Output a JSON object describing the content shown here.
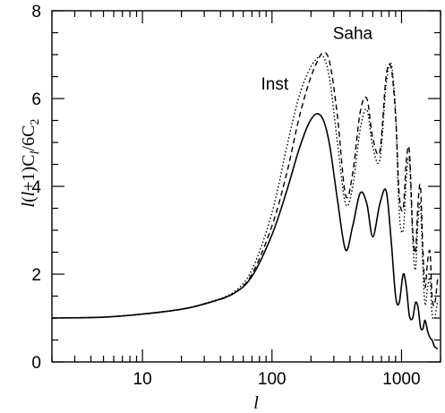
{
  "chart_data": {
    "type": "line",
    "title": "",
    "xlabel": "l",
    "ylabel": "l(l+1)C_l/6C_2",
    "ylabel_parts": {
      "a": "l",
      "b": "(",
      "c": "l",
      "d": "+1)C",
      "e": "l",
      "f": "/6C",
      "g": "2"
    },
    "x_scale": "log",
    "xlim": [
      2,
      2000
    ],
    "ylim": [
      0,
      8
    ],
    "grid": false,
    "x_ticks": [
      10,
      100,
      1000
    ],
    "x_tick_labels": [
      "10",
      "100",
      "1000"
    ],
    "y_ticks": [
      0,
      2,
      4,
      6,
      8
    ],
    "y_tick_labels": [
      "0",
      "2",
      "4",
      "6",
      "8"
    ],
    "annotations": [
      {
        "text": "Saha",
        "x": 420,
        "y": 7.5
      },
      {
        "text": "Inst",
        "x": 105,
        "y": 6.35
      }
    ],
    "series": [
      {
        "style": "solid",
        "x": [
          2,
          5,
          10,
          20,
          30,
          50,
          70,
          100,
          130,
          160,
          190,
          220,
          250,
          280,
          320,
          370,
          420,
          480,
          540,
          600,
          680,
          760,
          830,
          900,
          960,
          1030,
          1090,
          1150,
          1220,
          1280,
          1340,
          1400,
          1460,
          1520,
          1590,
          1660,
          1720,
          1800,
          1900
        ],
        "y": [
          1.0,
          1.02,
          1.09,
          1.2,
          1.32,
          1.55,
          1.95,
          2.9,
          3.9,
          4.8,
          5.4,
          5.65,
          5.5,
          4.9,
          3.7,
          2.55,
          3.1,
          3.85,
          3.6,
          2.85,
          3.6,
          3.9,
          2.8,
          1.5,
          1.35,
          2.0,
          1.7,
          1.05,
          1.0,
          1.35,
          1.25,
          0.8,
          0.75,
          0.95,
          0.7,
          0.55,
          0.5,
          0.35,
          0.3
        ]
      },
      {
        "style": "dashed",
        "name": "Saha",
        "x": [
          2,
          5,
          10,
          20,
          30,
          50,
          70,
          100,
          130,
          160,
          190,
          220,
          250,
          280,
          320,
          370,
          420,
          480,
          540,
          600,
          680,
          760,
          830,
          900,
          960,
          1030,
          1090,
          1150,
          1220,
          1280,
          1340,
          1400,
          1460,
          1520,
          1590,
          1660,
          1720,
          1800,
          1900
        ],
        "y": [
          1.0,
          1.02,
          1.09,
          1.2,
          1.32,
          1.55,
          2.0,
          3.1,
          4.3,
          5.5,
          6.3,
          6.8,
          7.05,
          6.8,
          5.6,
          3.8,
          4.3,
          5.7,
          6.0,
          5.1,
          4.8,
          6.5,
          6.7,
          5.6,
          3.8,
          3.5,
          4.6,
          4.8,
          3.0,
          2.5,
          3.6,
          4.0,
          2.6,
          1.7,
          2.3,
          2.5,
          1.5,
          1.3,
          1.9
        ]
      },
      {
        "style": "dotted",
        "name": "Inst",
        "x": [
          2,
          5,
          10,
          20,
          30,
          50,
          70,
          100,
          130,
          160,
          190,
          220,
          250,
          280,
          320,
          370,
          420,
          480,
          540,
          600,
          680,
          760,
          830,
          900,
          960,
          1030,
          1090,
          1150,
          1220,
          1280,
          1340,
          1400,
          1460,
          1520,
          1590,
          1660,
          1720,
          1800,
          1900
        ],
        "y": [
          1.0,
          1.02,
          1.09,
          1.2,
          1.33,
          1.58,
          2.1,
          3.4,
          4.9,
          6.0,
          6.6,
          6.9,
          6.95,
          6.4,
          5.0,
          3.6,
          4.0,
          5.3,
          5.75,
          4.9,
          4.6,
          6.3,
          6.8,
          5.7,
          3.4,
          3.0,
          4.2,
          4.6,
          2.8,
          2.1,
          3.2,
          3.6,
          2.2,
          1.3,
          1.7,
          1.9,
          1.1,
          1.0,
          1.4
        ]
      }
    ]
  }
}
